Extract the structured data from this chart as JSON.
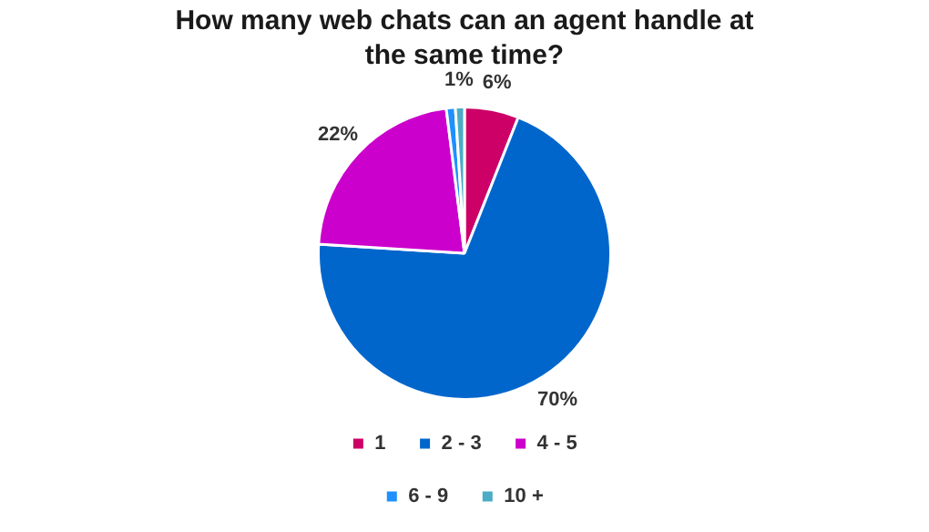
{
  "chart_data": {
    "type": "pie",
    "title": "How many web chats can an agent handle at the same time?",
    "categories": [
      "1",
      "2 - 3",
      "4 - 5",
      "6 - 9",
      "10 +"
    ],
    "values": [
      6,
      70,
      22,
      1,
      1
    ],
    "colors": [
      "#cc0066",
      "#0066cc",
      "#cc00cc",
      "#1e90ff",
      "#4bacc6"
    ],
    "value_labels": [
      "6%",
      "70%",
      "22%",
      null,
      "1%"
    ],
    "legend": "bottom"
  }
}
